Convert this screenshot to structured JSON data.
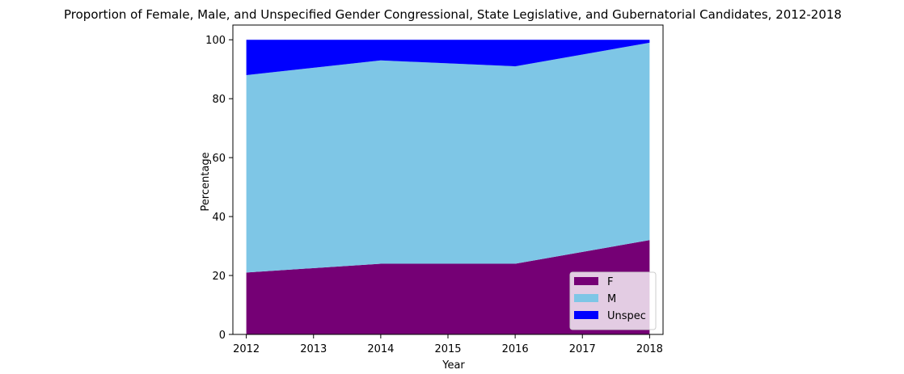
{
  "chart_data": {
    "type": "area",
    "title": "Proportion of Female, Male, and Unspecified Gender Congressional, State Legislative, and Gubernatorial Candidates, 2012-2018",
    "xlabel": "Year",
    "ylabel": "Percentage",
    "x": [
      2012,
      2014,
      2016,
      2018
    ],
    "xticks": [
      "2012",
      "2013",
      "2014",
      "2015",
      "2016",
      "2017",
      "2018"
    ],
    "xlim": [
      2011.8,
      2018.2
    ],
    "ylim": [
      0,
      105
    ],
    "yticks": [
      "0",
      "20",
      "40",
      "60",
      "80",
      "100"
    ],
    "stacked": true,
    "series": [
      {
        "name": "F",
        "values": [
          21,
          24,
          24,
          32
        ],
        "color": "#750075"
      },
      {
        "name": "M",
        "values": [
          67,
          69,
          67,
          67
        ],
        "color": "#7ec6e6"
      },
      {
        "name": "Unspec",
        "values": [
          12,
          7,
          9,
          1
        ],
        "color": "#0000ff"
      }
    ],
    "legend_position": "lower-right",
    "grid": false
  }
}
